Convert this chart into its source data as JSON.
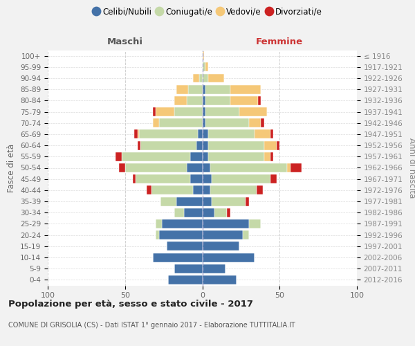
{
  "age_groups": [
    "0-4",
    "5-9",
    "10-14",
    "15-19",
    "20-24",
    "25-29",
    "30-34",
    "35-39",
    "40-44",
    "45-49",
    "50-54",
    "55-59",
    "60-64",
    "65-69",
    "70-74",
    "75-79",
    "80-84",
    "85-89",
    "90-94",
    "95-99",
    "100+"
  ],
  "birth_years": [
    "2012-2016",
    "2007-2011",
    "2002-2006",
    "1997-2001",
    "1992-1996",
    "1987-1991",
    "1982-1986",
    "1977-1981",
    "1972-1976",
    "1967-1971",
    "1962-1966",
    "1957-1961",
    "1952-1956",
    "1947-1951",
    "1942-1946",
    "1937-1941",
    "1932-1936",
    "1927-1931",
    "1922-1926",
    "1917-1921",
    "≤ 1916"
  ],
  "colors": {
    "celibi": "#4472a8",
    "coniugati": "#c5d9a8",
    "vedovi": "#f5c878",
    "divorziati": "#cc2222"
  },
  "maschi": {
    "celibi": [
      22,
      18,
      32,
      23,
      28,
      26,
      12,
      17,
      6,
      8,
      10,
      8,
      4,
      3,
      0,
      0,
      0,
      0,
      0,
      0,
      0
    ],
    "coniugati": [
      0,
      0,
      0,
      0,
      2,
      4,
      6,
      10,
      27,
      35,
      40,
      44,
      36,
      38,
      28,
      18,
      10,
      9,
      2,
      0,
      0
    ],
    "vedovi": [
      0,
      0,
      0,
      0,
      0,
      0,
      0,
      0,
      0,
      0,
      0,
      0,
      0,
      1,
      4,
      12,
      8,
      8,
      4,
      0,
      0
    ],
    "divorziati": [
      0,
      0,
      0,
      0,
      0,
      0,
      0,
      0,
      3,
      2,
      4,
      4,
      2,
      2,
      0,
      2,
      0,
      0,
      0,
      0,
      0
    ]
  },
  "femmine": {
    "celibi": [
      22,
      15,
      34,
      24,
      26,
      30,
      8,
      6,
      5,
      6,
      5,
      4,
      4,
      4,
      2,
      2,
      2,
      2,
      0,
      0,
      0
    ],
    "coniugati": [
      0,
      0,
      0,
      0,
      4,
      8,
      8,
      22,
      30,
      38,
      50,
      36,
      36,
      30,
      28,
      22,
      16,
      16,
      4,
      2,
      0
    ],
    "vedovi": [
      0,
      0,
      0,
      0,
      0,
      0,
      0,
      0,
      0,
      0,
      2,
      4,
      8,
      10,
      8,
      18,
      18,
      20,
      10,
      2,
      1
    ],
    "divorziati": [
      0,
      0,
      0,
      0,
      0,
      0,
      2,
      2,
      4,
      4,
      7,
      2,
      2,
      2,
      2,
      0,
      2,
      0,
      0,
      0,
      0
    ]
  },
  "title": "Popolazione per età, sesso e stato civile - 2017",
  "subtitle": "COMUNE DI GRISOLIA (CS) - Dati ISTAT 1° gennaio 2017 - Elaborazione TUTTITALIA.IT",
  "xlabel_left": "Maschi",
  "xlabel_right": "Femmine",
  "ylabel_left": "Fasce di età",
  "ylabel_right": "Anni di nascita",
  "legend_labels": [
    "Celibi/Nubili",
    "Coniugati/e",
    "Vedovi/e",
    "Divorziati/e"
  ],
  "xlim": 100,
  "bg_color": "#f2f2f2",
  "plot_bg": "#ffffff",
  "grid_color": "#cccccc"
}
